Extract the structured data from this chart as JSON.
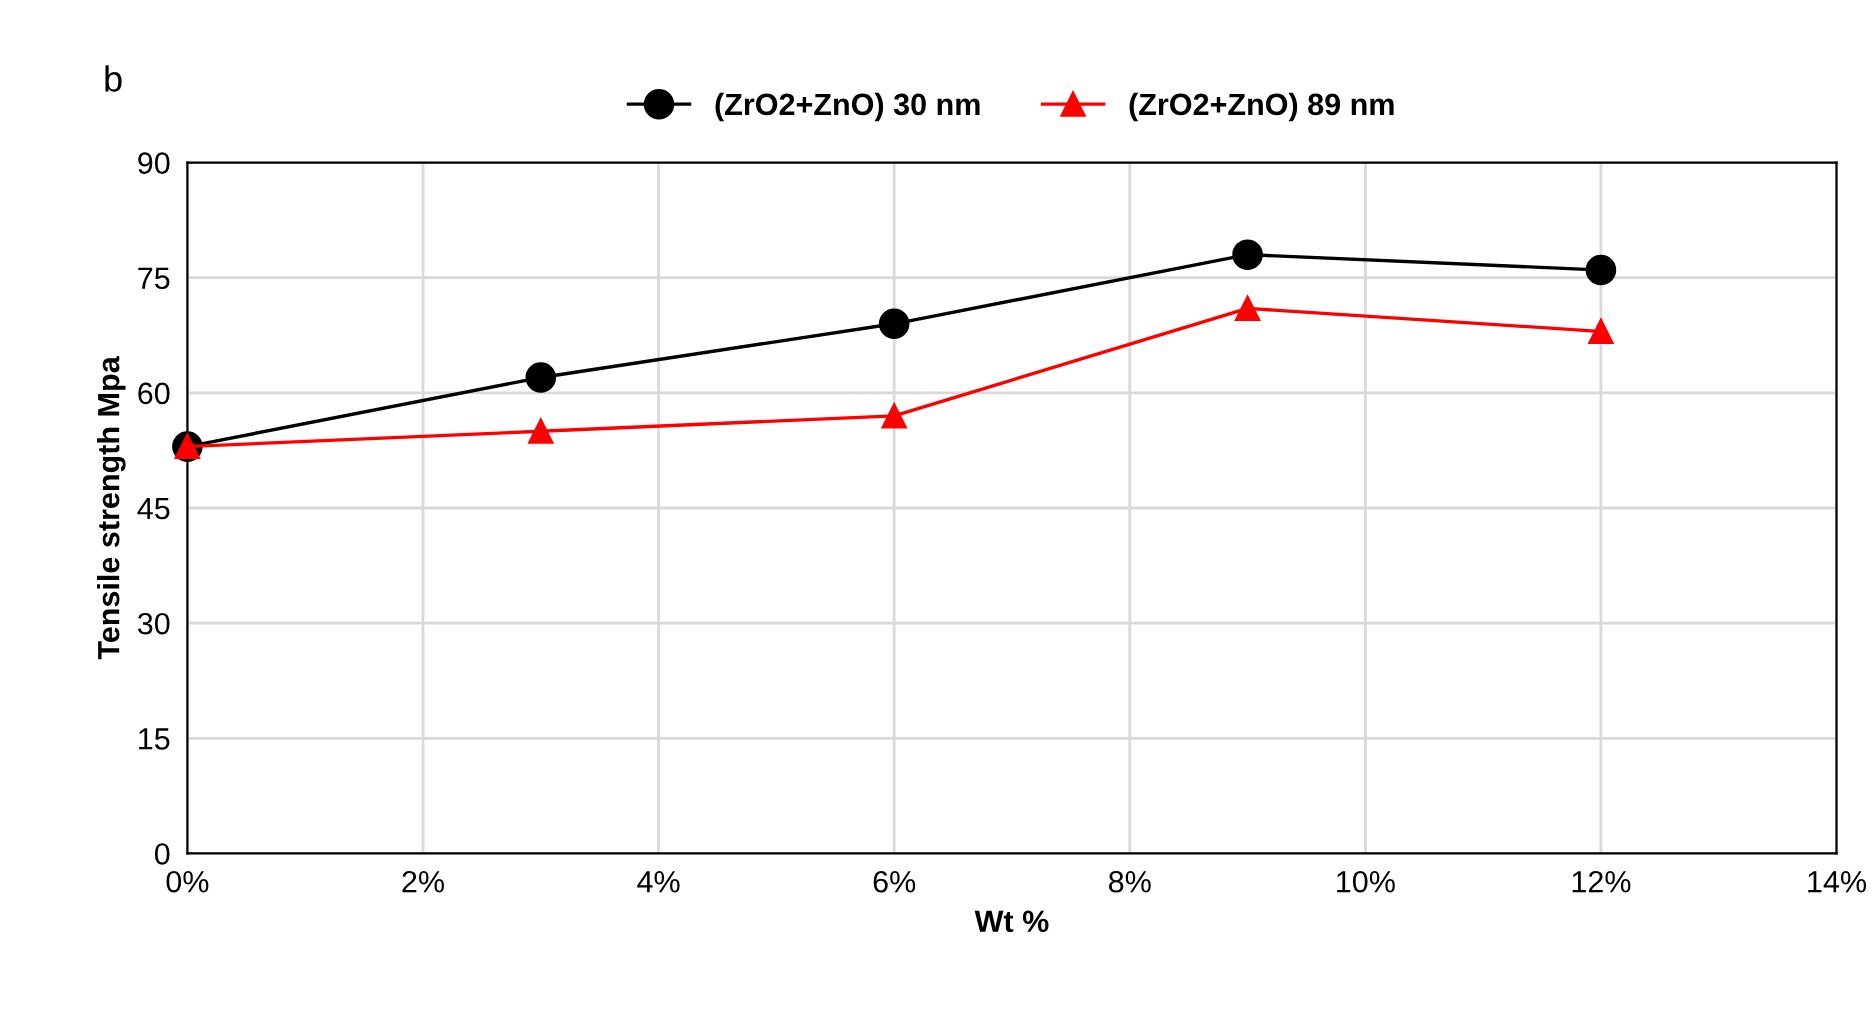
{
  "chart_data": {
    "type": "line",
    "xlabel": "Wt %",
    "ylabel": "Tensile strength Mpa",
    "annotations": [
      "b"
    ],
    "x": [
      0,
      3,
      6,
      9,
      12
    ],
    "series": [
      {
        "name": "(ZrO2+ZnO) 30 nm",
        "color": "#000000",
        "marker": "circle",
        "values": [
          53,
          62,
          69,
          78,
          76
        ]
      },
      {
        "name": "(ZrO2+ZnO) 89 nm",
        "color": "#ff0000",
        "marker": "triangle",
        "values": [
          53,
          55,
          57,
          71,
          68
        ]
      }
    ],
    "xlim": [
      0,
      14
    ],
    "xticks": [
      {
        "value": 0,
        "label": "0%"
      },
      {
        "value": 2,
        "label": "2%"
      },
      {
        "value": 4,
        "label": "4%"
      },
      {
        "value": 6,
        "label": "6%"
      },
      {
        "value": 8,
        "label": "8%"
      },
      {
        "value": 10,
        "label": "10%"
      },
      {
        "value": 12,
        "label": "12%"
      },
      {
        "value": 14,
        "label": "14%"
      }
    ],
    "ylim": [
      0,
      90
    ],
    "yticks": [
      0,
      15,
      30,
      45,
      60,
      75,
      90
    ],
    "grid": true,
    "legend": "top",
    "line_style": "solid"
  }
}
